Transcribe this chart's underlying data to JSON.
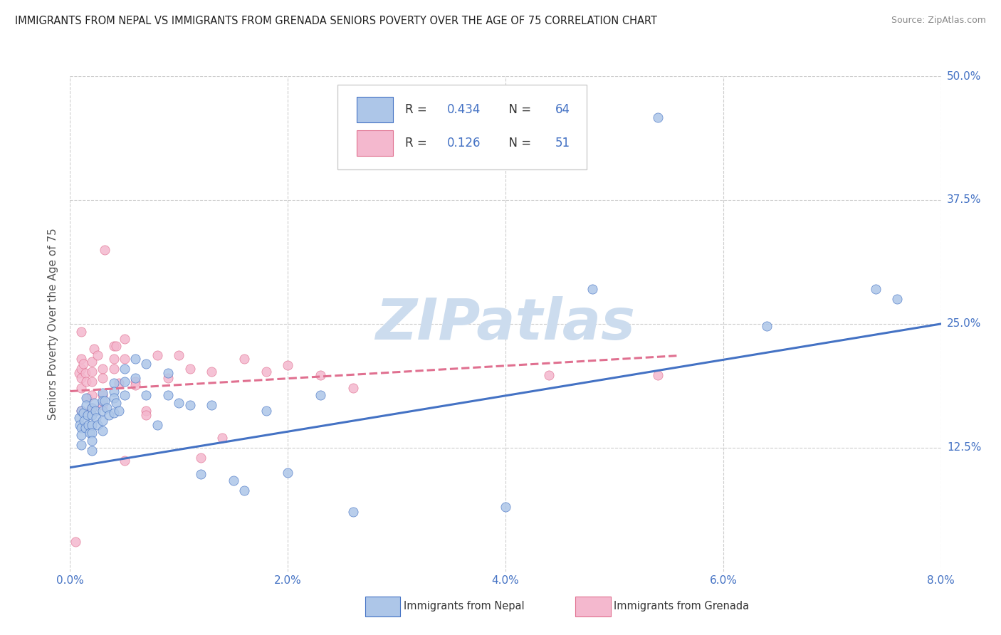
{
  "title": "IMMIGRANTS FROM NEPAL VS IMMIGRANTS FROM GRENADA SENIORS POVERTY OVER THE AGE OF 75 CORRELATION CHART",
  "source": "Source: ZipAtlas.com",
  "ylabel_label": "Seniors Poverty Over the Age of 75",
  "x_min": 0.0,
  "x_max": 0.08,
  "y_min": 0.0,
  "y_max": 0.5,
  "nepal_color": "#adc6e8",
  "grenada_color": "#f4b8ce",
  "nepal_line_color": "#4472c4",
  "grenada_line_color": "#e07090",
  "legend_R_nepal": "0.434",
  "legend_N_nepal": "64",
  "legend_R_grenada": "0.126",
  "legend_N_grenada": "51",
  "watermark": "ZIPatlas",
  "nepal_scatter_x": [
    0.0008,
    0.0009,
    0.001,
    0.001,
    0.001,
    0.001,
    0.0012,
    0.0013,
    0.0014,
    0.0015,
    0.0015,
    0.0016,
    0.0017,
    0.0018,
    0.002,
    0.002,
    0.002,
    0.002,
    0.002,
    0.002,
    0.0022,
    0.0023,
    0.0024,
    0.0025,
    0.003,
    0.003,
    0.003,
    0.003,
    0.003,
    0.0032,
    0.0034,
    0.0036,
    0.004,
    0.004,
    0.004,
    0.004,
    0.0042,
    0.0045,
    0.005,
    0.005,
    0.005,
    0.006,
    0.006,
    0.007,
    0.007,
    0.008,
    0.009,
    0.009,
    0.01,
    0.011,
    0.012,
    0.013,
    0.015,
    0.016,
    0.018,
    0.02,
    0.023,
    0.026,
    0.04,
    0.048,
    0.054,
    0.064,
    0.074,
    0.076
  ],
  "nepal_scatter_y": [
    0.155,
    0.148,
    0.162,
    0.145,
    0.138,
    0.128,
    0.16,
    0.152,
    0.145,
    0.175,
    0.168,
    0.158,
    0.148,
    0.14,
    0.165,
    0.158,
    0.148,
    0.14,
    0.132,
    0.122,
    0.17,
    0.162,
    0.155,
    0.148,
    0.18,
    0.172,
    0.162,
    0.152,
    0.142,
    0.172,
    0.165,
    0.158,
    0.19,
    0.182,
    0.175,
    0.16,
    0.17,
    0.162,
    0.205,
    0.192,
    0.178,
    0.215,
    0.195,
    0.21,
    0.178,
    0.148,
    0.2,
    0.178,
    0.17,
    0.168,
    0.098,
    0.168,
    0.092,
    0.082,
    0.162,
    0.1,
    0.178,
    0.06,
    0.065,
    0.285,
    0.458,
    0.248,
    0.285,
    0.275
  ],
  "grenada_scatter_x": [
    0.0005,
    0.0008,
    0.001,
    0.001,
    0.001,
    0.001,
    0.001,
    0.001,
    0.0012,
    0.0014,
    0.0015,
    0.0016,
    0.0018,
    0.002,
    0.002,
    0.002,
    0.002,
    0.002,
    0.0022,
    0.0025,
    0.003,
    0.003,
    0.003,
    0.003,
    0.0032,
    0.004,
    0.004,
    0.004,
    0.0042,
    0.0045,
    0.005,
    0.005,
    0.006,
    0.007,
    0.008,
    0.009,
    0.01,
    0.011,
    0.012,
    0.013,
    0.014,
    0.016,
    0.018,
    0.02,
    0.023,
    0.026,
    0.044,
    0.054,
    0.005,
    0.006,
    0.007
  ],
  "grenada_scatter_y": [
    0.03,
    0.2,
    0.242,
    0.215,
    0.205,
    0.195,
    0.185,
    0.162,
    0.21,
    0.2,
    0.192,
    0.175,
    0.162,
    0.212,
    0.202,
    0.192,
    0.178,
    0.165,
    0.225,
    0.218,
    0.205,
    0.195,
    0.178,
    0.168,
    0.325,
    0.228,
    0.215,
    0.205,
    0.228,
    0.19,
    0.235,
    0.215,
    0.192,
    0.162,
    0.218,
    0.195,
    0.218,
    0.205,
    0.115,
    0.202,
    0.135,
    0.215,
    0.202,
    0.208,
    0.198,
    0.185,
    0.198,
    0.198,
    0.112,
    0.188,
    0.158
  ],
  "nepal_trend_x": [
    0.0,
    0.08
  ],
  "nepal_trend_y": [
    0.105,
    0.25
  ],
  "grenada_trend_x": [
    0.0,
    0.056
  ],
  "grenada_trend_y": [
    0.182,
    0.218
  ],
  "background_color": "#ffffff",
  "grid_color": "#cccccc",
  "title_color": "#222222",
  "tick_color": "#4472c4",
  "ylabel_color": "#555555",
  "watermark_color": "#ccdcee"
}
